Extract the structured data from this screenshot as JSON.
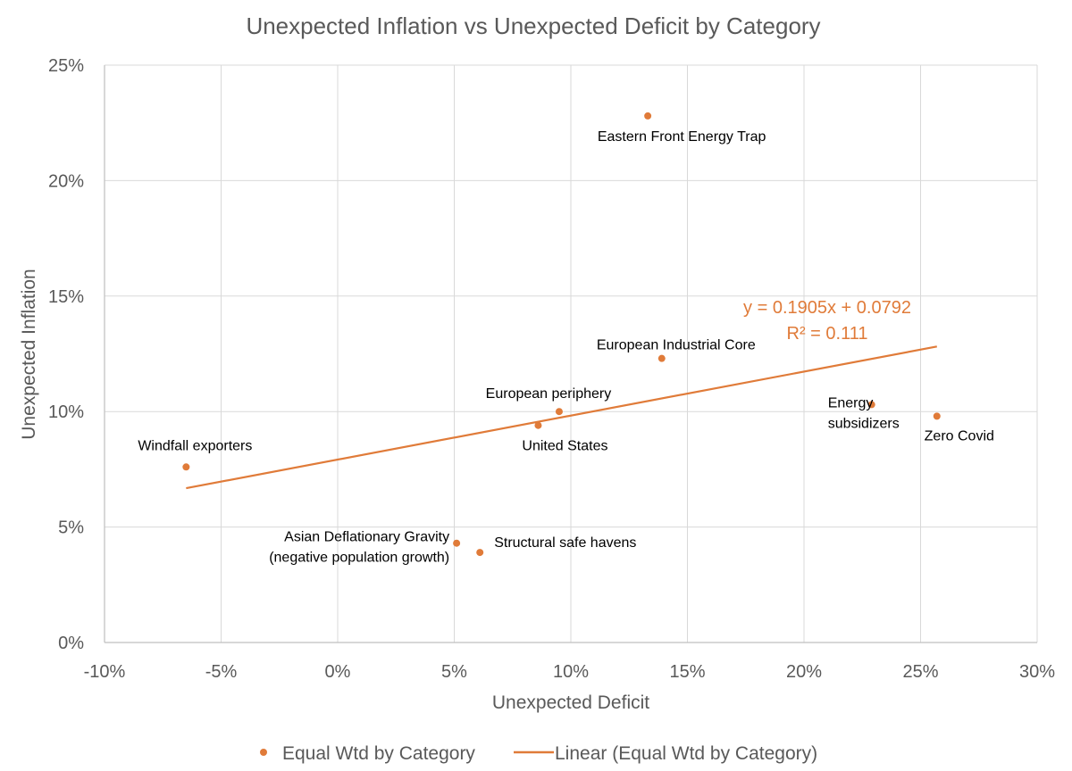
{
  "chart_data": {
    "type": "scatter",
    "title": "Unexpected Inflation vs Unexpected Deficit by Category",
    "xlabel": "Unexpected Deficit",
    "ylabel": "Unexpected Inflation",
    "xlim": [
      -0.1,
      0.3
    ],
    "ylim": [
      0.0,
      0.25
    ],
    "x_ticks": [
      -0.1,
      -0.05,
      0.0,
      0.05,
      0.1,
      0.15,
      0.2,
      0.25,
      0.3
    ],
    "x_tick_labels": [
      "-10%",
      "-5%",
      "0%",
      "5%",
      "10%",
      "15%",
      "20%",
      "25%",
      "30%"
    ],
    "y_ticks": [
      0.0,
      0.05,
      0.1,
      0.15,
      0.2,
      0.25
    ],
    "y_tick_labels": [
      "0%",
      "5%",
      "10%",
      "15%",
      "20%",
      "25%"
    ],
    "grid": true,
    "legend_position": "bottom",
    "marker_color": "#E07B39",
    "series": [
      {
        "name": "Equal Wtd by Category",
        "points": [
          {
            "label": "Eastern Front Energy Trap",
            "x": 0.133,
            "y": 0.228
          },
          {
            "label": "European Industrial Core",
            "x": 0.139,
            "y": 0.123
          },
          {
            "label": "European periphery",
            "x": 0.095,
            "y": 0.1
          },
          {
            "label": "United States",
            "x": 0.086,
            "y": 0.094
          },
          {
            "label": "Energy subsidizers",
            "x": 0.229,
            "y": 0.103
          },
          {
            "label": "Zero Covid",
            "x": 0.257,
            "y": 0.098
          },
          {
            "label": "Windfall exporters",
            "x": -0.065,
            "y": 0.076
          },
          {
            "label": "Asian Deflationary Gravity (negative population growth)",
            "x": 0.051,
            "y": 0.043
          },
          {
            "label": "Structural safe havens",
            "x": 0.061,
            "y": 0.039
          }
        ]
      }
    ],
    "trendline": {
      "name": "Linear (Equal Wtd by Category)",
      "type": "linear",
      "slope": 0.1905,
      "intercept": 0.0792,
      "x_range": [
        -0.065,
        0.257
      ],
      "equation_text": "y = 0.1905x + 0.0792",
      "r2_text": "R² = 0.111"
    }
  }
}
